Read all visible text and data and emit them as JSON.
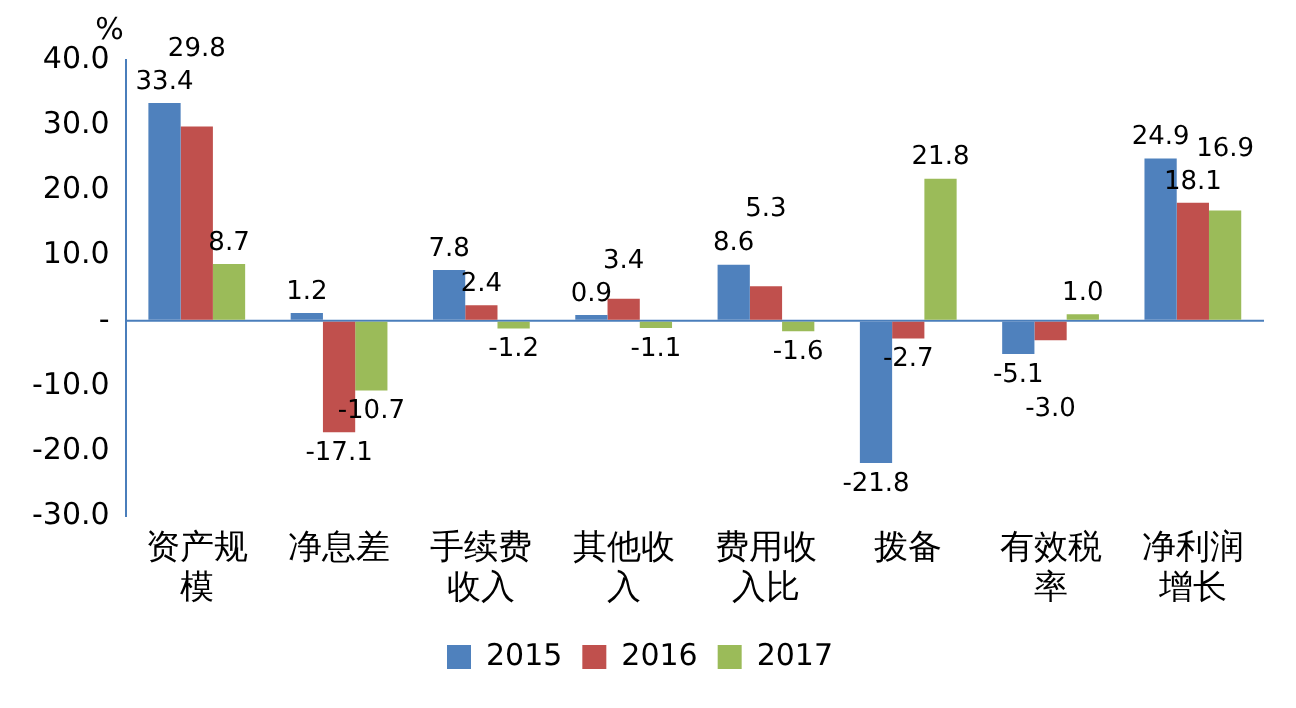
{
  "chart_data": {
    "type": "bar",
    "ylabel": "%",
    "categories": [
      "资产规模",
      "净息差",
      "手续费收入",
      "其他收入",
      "费用收入比",
      "拨备",
      "有效税率",
      "净利润增长"
    ],
    "series": [
      {
        "name": "2015",
        "color": "#4f81bd",
        "values": [
          33.4,
          1.2,
          7.8,
          0.9,
          8.6,
          -21.8,
          -5.1,
          24.9
        ],
        "value_labels": [
          "33.4",
          "1.2",
          "7.8",
          "0.9",
          "8.6",
          "-21.8",
          "-5.1",
          "24.9"
        ]
      },
      {
        "name": "2016",
        "color": "#c0504d",
        "values": [
          29.8,
          -17.1,
          2.4,
          3.4,
          5.3,
          -2.7,
          -3.0,
          18.1
        ],
        "value_labels": [
          "29.8",
          "-17.1",
          "2.4",
          "3.4",
          "5.3",
          "-2.7",
          "-3.0",
          "18.1"
        ]
      },
      {
        "name": "2017",
        "color": "#9bbb59",
        "values": [
          8.7,
          -10.7,
          -1.2,
          -1.1,
          -1.6,
          21.8,
          1.0,
          16.9
        ],
        "value_labels": [
          "8.7",
          "-10.7",
          "-1.2",
          "-1.1",
          "-1.6",
          "21.8",
          "1.0",
          "16.9"
        ]
      }
    ],
    "ylim": [
      -30,
      40
    ],
    "yticks": [
      {
        "value": -30,
        "label": "-30.0"
      },
      {
        "value": -20,
        "label": "-20.0"
      },
      {
        "value": -10,
        "label": "-10.0"
      },
      {
        "value": 0,
        "label": "-"
      },
      {
        "value": 10,
        "label": "10.0"
      },
      {
        "value": 20,
        "label": "20.0"
      },
      {
        "value": 30,
        "label": "30.0"
      },
      {
        "value": 40,
        "label": "40.0"
      }
    ],
    "ref_lines": [
      {
        "axis": "y",
        "value": 0,
        "color": "#4a7ebb"
      }
    ],
    "legend": "bottom",
    "grid": false
  }
}
